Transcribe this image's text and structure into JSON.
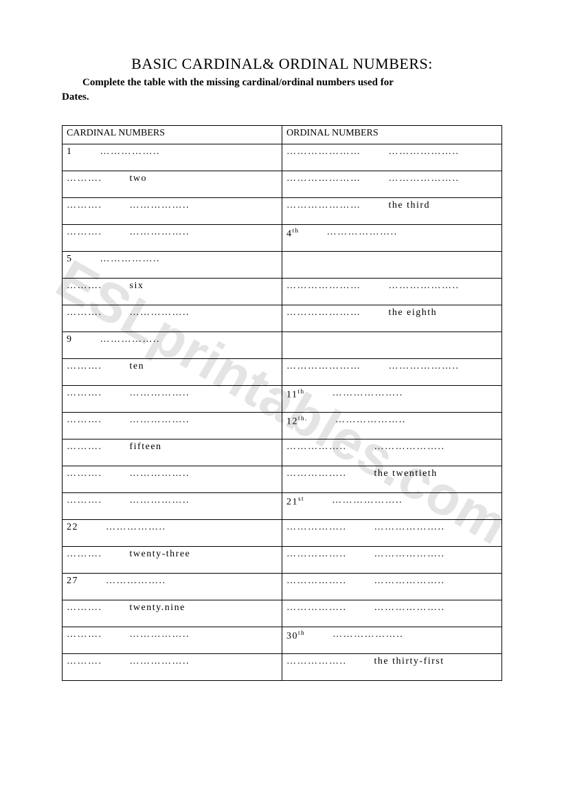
{
  "title": "BASIC CARDINAL& ORDINAL NUMBERS:",
  "instructions_line1": "Complete the table with the missing cardinal/ordinal numbers used for",
  "instructions_line2": "Dates.",
  "columns": {
    "cardinal": "CARDINAL NUMBERS",
    "ordinal": "ORDINAL NUMBERS"
  },
  "dots_short": "……….",
  "dots_med": "……………..",
  "dots_long": "…………………",
  "rows": [
    {
      "c1": "1",
      "c2": "……………..",
      "o1": "…………………",
      "o2": "……………….."
    },
    {
      "c1": "……….",
      "c2": "two",
      "o1": "…………………",
      "o2": "……………….."
    },
    {
      "c1": "……….",
      "c2": "……………..",
      "o1": "…………………",
      "o2": "the third"
    },
    {
      "c1": "……….",
      "c2": "……………..",
      "o1": "4<sup>th</sup>",
      "o2": "……………….."
    },
    {
      "c1": "5",
      "c2": "……………..",
      "o1": "",
      "o2": ""
    },
    {
      "c1": "……….",
      "c2": "six",
      "o1": "…………………",
      "o2": "……………….."
    },
    {
      "c1": "……….",
      "c2": "……………..",
      "o1": "…………………",
      "o2": "the eighth"
    },
    {
      "c1": "9",
      "c2": "……………..",
      "o1": "",
      "o2": ""
    },
    {
      "c1": "……….",
      "c2": "ten",
      "o1": "…………………",
      "o2": "……………….."
    },
    {
      "c1": "……….",
      "c2": "……………..",
      "o1": "11<sup>th</sup>",
      "o2": "……………….."
    },
    {
      "c1": "……….",
      "c2": "……………..",
      "o1": "12<sup>th.</sup>",
      "o2": "……………….."
    },
    {
      "c1": "……….",
      "c2": "fifteen",
      "o1": "……………..",
      "o2": "……………….."
    },
    {
      "c1": "……….",
      "c2": "……………..",
      "o1": "……………..",
      "o2": "the twentieth"
    },
    {
      "c1": "……….",
      "c2": "……………..",
      "o1": "21<sup>st</sup>",
      "o2": "……………….."
    },
    {
      "c1": "22",
      "c2": "……………..",
      "o1": "……………..",
      "o2": "……………….."
    },
    {
      "c1": "……….",
      "c2": "twenty-three",
      "o1": "……………..",
      "o2": "……………….."
    },
    {
      "c1": "27",
      "c2": "……………..",
      "o1": "……………..",
      "o2": "……………….."
    },
    {
      "c1": "……….",
      "c2": "twenty.nine",
      "o1": "……………..",
      "o2": "……………….."
    },
    {
      "c1": "……….",
      "c2": "……………..",
      "o1": "30<sup>th</sup>",
      "o2": "……………….."
    },
    {
      "c1": "……….",
      "c2": "……………..",
      "o1": "……………..",
      "o2": "the thirty-first"
    }
  ],
  "watermark": "ESLprintables.com"
}
